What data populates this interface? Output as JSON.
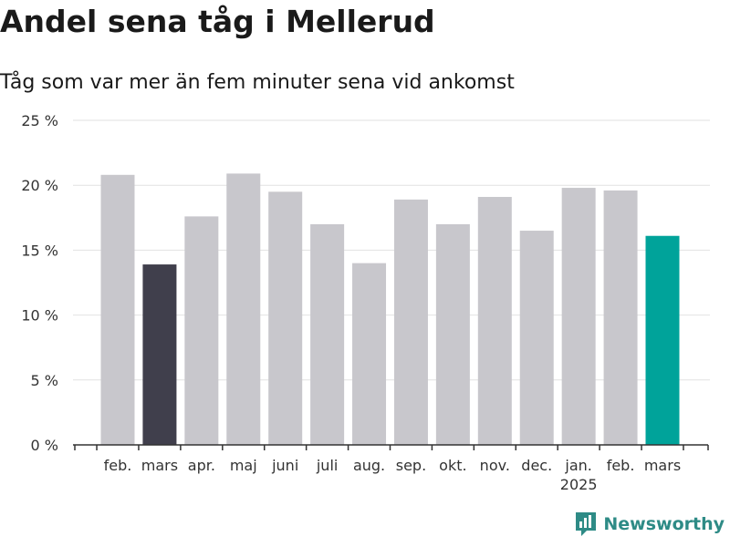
{
  "chart_data": {
    "type": "bar",
    "title": "Andel sena tåg i Mellerud",
    "subtitle": "Tåg som var mer än fem minuter sena vid ankomst",
    "categories": [
      "feb.",
      "mars",
      "apr.",
      "maj",
      "juni",
      "juli",
      "aug.",
      "sep.",
      "okt.",
      "nov.",
      "dec.",
      "jan.",
      "feb.",
      "mars"
    ],
    "year_label": {
      "under_category_index": 11,
      "text": "2025"
    },
    "values": [
      20.8,
      13.9,
      17.6,
      20.9,
      19.5,
      17.0,
      14.0,
      18.9,
      17.0,
      19.1,
      16.5,
      19.8,
      19.6,
      16.1
    ],
    "ylim": [
      0,
      25
    ],
    "yticks": [
      0,
      5,
      10,
      15,
      20,
      25
    ],
    "ytick_labels": [
      "0 %",
      "5 %",
      "10 %",
      "15 %",
      "20 %",
      "25 %"
    ],
    "grid": true,
    "colors": {
      "default": "#c8c7cc",
      "highlight_previous_year": "#403f4c",
      "highlight_current": "#00a39a"
    },
    "bar_colors": [
      "default",
      "highlight_previous_year",
      "default",
      "default",
      "default",
      "default",
      "default",
      "default",
      "default",
      "default",
      "default",
      "default",
      "default",
      "highlight_current"
    ]
  },
  "brand": {
    "name": "Newsworthy",
    "icon": "newsworthy-logo-icon",
    "color": "#2e8b86"
  }
}
